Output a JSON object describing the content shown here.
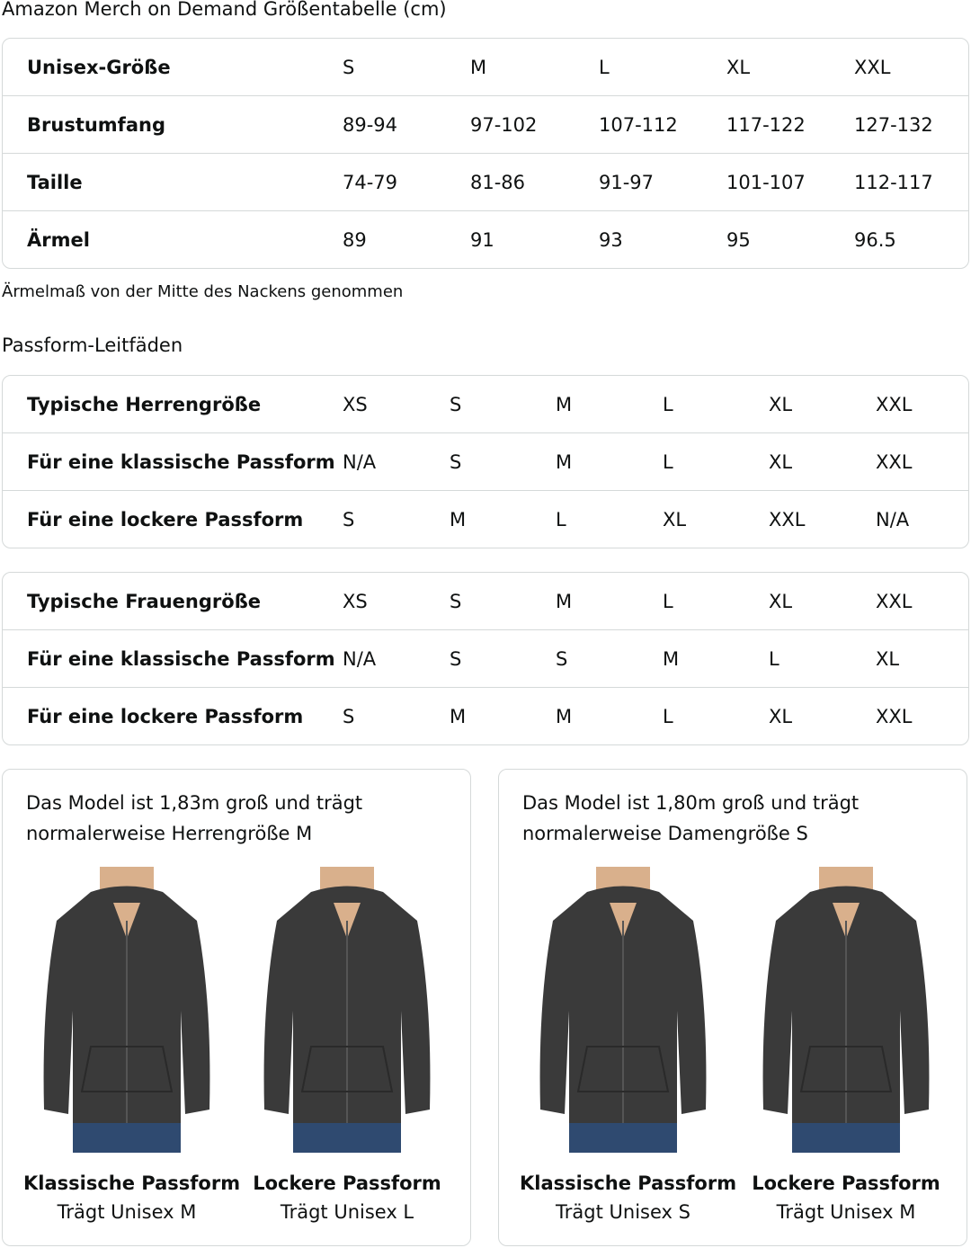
{
  "title": "Amazon Merch on Demand Größentabelle (cm)",
  "size_table": {
    "rows": [
      {
        "label": "Unisex-Größe",
        "values": [
          "S",
          "M",
          "L",
          "XL",
          "XXL"
        ]
      },
      {
        "label": "Brustumfang",
        "values": [
          "89-94",
          "97-102",
          "107-112",
          "117-122",
          "127-132"
        ]
      },
      {
        "label": "Taille",
        "values": [
          "74-79",
          "81-86",
          "91-97",
          "101-107",
          "112-117"
        ]
      },
      {
        "label": "Ärmel",
        "values": [
          "89",
          "91",
          "93",
          "95",
          "96.5"
        ]
      }
    ]
  },
  "note": "Ärmelmaß von der Mitte des Nackens genommen",
  "fit_title": "Passform-Leitfäden",
  "men_table": {
    "rows": [
      {
        "label": "Typische Herrengröße",
        "values": [
          "XS",
          "S",
          "M",
          "L",
          "XL",
          "XXL"
        ]
      },
      {
        "label": "Für eine klassische Passform",
        "values": [
          "N/A",
          "S",
          "M",
          "L",
          "XL",
          "XXL"
        ]
      },
      {
        "label": "Für eine lockere Passform",
        "values": [
          "S",
          "M",
          "L",
          "XL",
          "XXL",
          "N/A"
        ]
      }
    ]
  },
  "women_table": {
    "rows": [
      {
        "label": "Typische Frauengröße",
        "values": [
          "XS",
          "S",
          "M",
          "L",
          "XL",
          "XXL"
        ]
      },
      {
        "label": "Für eine klassische Passform",
        "values": [
          "N/A",
          "S",
          "S",
          "M",
          "L",
          "XL"
        ]
      },
      {
        "label": "Für eine lockere Passform",
        "values": [
          "S",
          "M",
          "M",
          "L",
          "XL",
          "XXL"
        ]
      }
    ]
  },
  "cards": [
    {
      "caption": "Das Model ist 1,83m groß und trägt normalerweise Herrengröße M",
      "figures": [
        {
          "fit": "Klassische Passform",
          "wears": "Trägt Unisex M"
        },
        {
          "fit": "Lockere Passform",
          "wears": "Trägt Unisex L"
        }
      ]
    },
    {
      "caption": "Das Model ist 1,80m groß und trägt normalerweise Damengröße S",
      "figures": [
        {
          "fit": "Klassische Passform",
          "wears": "Trägt Unisex S"
        },
        {
          "fit": "Lockere Passform",
          "wears": "Trägt Unisex M"
        }
      ]
    }
  ],
  "colors": {
    "border": "#d5d9d9",
    "hoodie": "#3a3a3a",
    "jeans": "#2f4a70"
  }
}
